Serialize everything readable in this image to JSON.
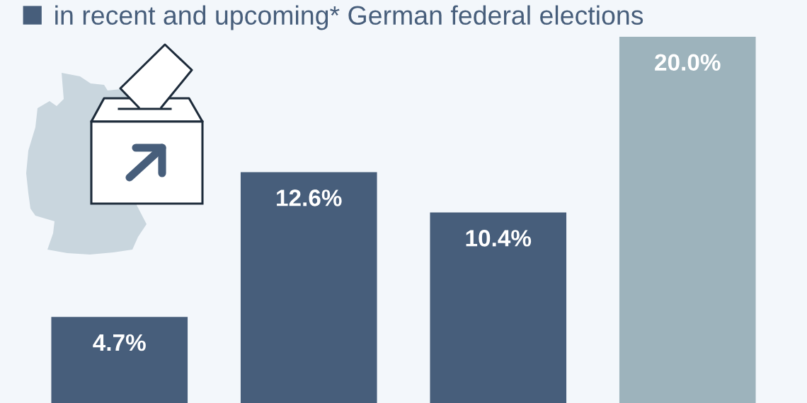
{
  "chart_data": {
    "type": "bar",
    "categories": [
      null,
      null,
      null,
      null
    ],
    "series": [
      {
        "name": "in recent and upcoming* German federal elections",
        "color": "#475e7b",
        "colors": [
          "#475e7b",
          "#475e7b",
          "#475e7b",
          "#9db3bc"
        ],
        "values": [
          4.7,
          12.6,
          10.4,
          20.0
        ],
        "value_labels": [
          "4.7%",
          "12.6%",
          "10.4%",
          "20.0%"
        ]
      }
    ],
    "legend": "top left"
  }
}
